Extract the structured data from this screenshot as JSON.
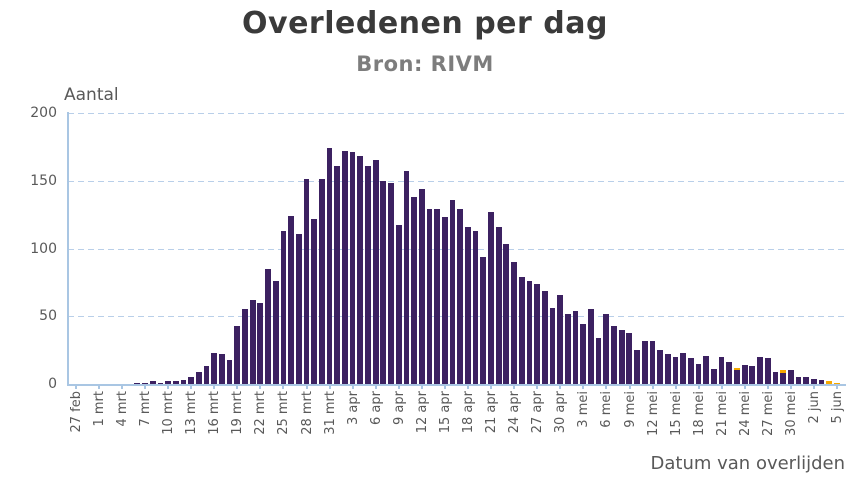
{
  "chart_data": {
    "type": "bar",
    "title": "Overledenen per dag",
    "subtitle": "Bron: RIVM",
    "ylabel": "Aantal",
    "xlabel": "Datum van overlijden",
    "ylim": [
      0,
      200
    ],
    "yticks": [
      0,
      50,
      100,
      150,
      200
    ],
    "grid": "horizontal-dashed",
    "legend_position": "none",
    "xtick_every": 3,
    "xtick_labels": [
      "27 feb",
      "1 mrt",
      "4 mrt",
      "7 mrt",
      "10 mrt",
      "13 mrt",
      "16 mrt",
      "19 mrt",
      "22 mrt",
      "25 mrt",
      "28 mrt",
      "31 mrt",
      "3 apr",
      "6 apr",
      "9 apr",
      "12 apr",
      "15 apr",
      "18 apr",
      "21 apr",
      "24 apr",
      "27 apr",
      "30 apr",
      "3 mei",
      "6 mei",
      "9 mei",
      "12 mei",
      "15 mei",
      "18 mei",
      "21 mei",
      "24 mei",
      "27 mei",
      "30 mei",
      "2 jun",
      "5 jun"
    ],
    "values": [
      0,
      0,
      0,
      0,
      0,
      0,
      0,
      0,
      1,
      1,
      2,
      1,
      2,
      2,
      3,
      5,
      9,
      13,
      23,
      22,
      18,
      43,
      55,
      62,
      60,
      85,
      76,
      113,
      124,
      111,
      151,
      122,
      151,
      174,
      161,
      172,
      171,
      168,
      161,
      165,
      150,
      148,
      117,
      157,
      138,
      144,
      129,
      129,
      123,
      136,
      129,
      116,
      113,
      94,
      127,
      116,
      103,
      90,
      79,
      76,
      74,
      69,
      56,
      66,
      52,
      54,
      44,
      55,
      34,
      52,
      43,
      40,
      38,
      25,
      32,
      32,
      25,
      22,
      20,
      23,
      19,
      15,
      21,
      11,
      20,
      16,
      12,
      14,
      13,
      20,
      19,
      9,
      10,
      10,
      5,
      5,
      4,
      3,
      2,
      1
    ],
    "highlights": [
      {
        "index": 86,
        "cap": 2
      },
      {
        "index": 92,
        "cap": 2
      },
      {
        "index": 98,
        "cap": 2
      },
      {
        "index": 99,
        "cap": 1
      }
    ],
    "bar_color": "#3c2161",
    "highlight_color": "#f6a800",
    "grid_color": "#b9cfe9",
    "axis_color": "#a9c6e3",
    "tick_text_color": "#595959",
    "title_color": "#3a3a3a",
    "subtitle_color": "#7d7d7d"
  }
}
